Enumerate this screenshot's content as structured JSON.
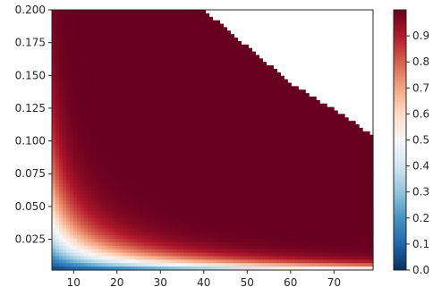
{
  "chart_data": {
    "type": "heatmap",
    "title": "",
    "xlabel": "",
    "ylabel": "",
    "xlim": [
      5,
      79
    ],
    "ylim": [
      0.0015,
      0.2
    ],
    "x_ticks": [
      10,
      20,
      30,
      40,
      50,
      60,
      70
    ],
    "x_tick_labels": [
      "10",
      "20",
      "30",
      "40",
      "50",
      "60",
      "70"
    ],
    "y_ticks": [
      0.025,
      0.05,
      0.075,
      0.1,
      0.125,
      0.15,
      0.175,
      0.2
    ],
    "y_tick_labels": [
      "0.025",
      "0.050",
      "0.075",
      "0.100",
      "0.125",
      "0.150",
      "0.175",
      "0.200"
    ],
    "colormap": "RdBu_r",
    "colormap_stops": [
      "#053061",
      "#2166ac",
      "#4393c3",
      "#92c5de",
      "#d1e5f0",
      "#f7f7f7",
      "#fddbc7",
      "#f4a582",
      "#d6604d",
      "#b2182b",
      "#67001f"
    ],
    "colorbar": {
      "range": [
        0,
        1
      ],
      "ticks": [
        0.0,
        0.1,
        0.2,
        0.3,
        0.4,
        0.5,
        0.6,
        0.7,
        0.8,
        0.9
      ],
      "tick_labels": [
        "0.0",
        "0.1",
        "0.2",
        "0.3",
        "0.4",
        "0.5",
        "0.6",
        "0.7",
        "0.8",
        "0.9"
      ]
    },
    "surface": {
      "description_of_values": "z(x, y) = 1 - exp(-k * x * y) below a cutoff curve; white (no data) region in upper right",
      "k": 3.7,
      "cutoff_curve_points": [
        [
          40,
          0.2
        ],
        [
          50,
          0.172
        ],
        [
          60,
          0.144
        ],
        [
          70,
          0.124
        ],
        [
          79,
          0.104
        ]
      ],
      "contour_line_color": "#67001f",
      "contour_line_offsets": [
        0.006,
        0.012,
        0.019,
        0.026,
        0.034
      ]
    },
    "grid": false
  }
}
